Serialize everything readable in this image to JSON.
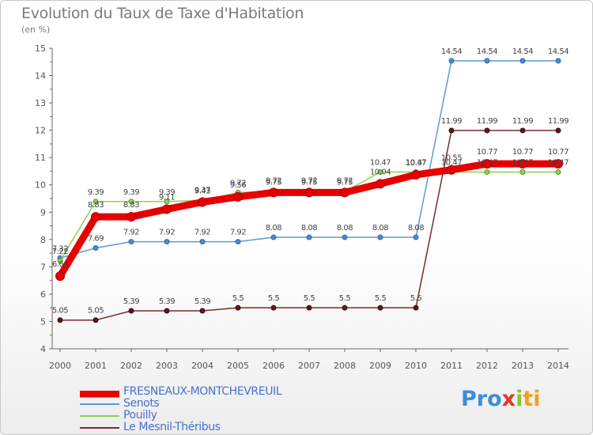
{
  "title": "Evolution du Taux de Taxe d'Habitation",
  "unit": "(en %)",
  "logo": [
    "Pro",
    "x",
    "i",
    "ti"
  ],
  "chart_data": {
    "type": "line",
    "x": [
      "2000",
      "2001",
      "2002",
      "2003",
      "2004",
      "2005",
      "2006",
      "2007",
      "2008",
      "2009",
      "2010",
      "2011",
      "2012",
      "2013",
      "2014"
    ],
    "ylim": [
      4,
      15
    ],
    "yticks": [
      4,
      5,
      6,
      7,
      8,
      9,
      10,
      11,
      12,
      13,
      14,
      15
    ],
    "grid": false,
    "legend_position": "bottom-left",
    "series": [
      {
        "name": "FRESNEAUX-MONTCHEVREUIL",
        "color": "#e60000",
        "values": [
          6.66,
          8.83,
          8.83,
          9.11,
          9.37,
          9.56,
          9.72,
          9.72,
          9.72,
          10.04,
          10.37,
          10.55,
          10.77,
          10.77,
          10.77
        ],
        "labels": [
          "6.66",
          "8.83",
          "8.83",
          "9.11",
          "9.37",
          "9.56",
          "9.72",
          "9.72",
          "9.72",
          "10.04",
          "10.37",
          "10.55",
          "10.77",
          "10.77",
          "10.77"
        ]
      },
      {
        "name": "Senots",
        "color": "#5b9bd5",
        "values": [
          7.32,
          7.69,
          7.92,
          7.92,
          7.92,
          7.92,
          8.08,
          8.08,
          8.08,
          8.08,
          8.08,
          14.54,
          14.54,
          14.54,
          14.54
        ],
        "labels": [
          "7.32",
          "7.69",
          "7.92",
          "7.92",
          "7.92",
          "7.92",
          "8.08",
          "8.08",
          "8.08",
          "8.08",
          "8.08",
          "14.54",
          "14.54",
          "14.54",
          "14.54"
        ]
      },
      {
        "name": "Pouilly",
        "color": "#8fd14f",
        "values": [
          7.22,
          9.39,
          9.39,
          9.39,
          9.43,
          9.72,
          9.75,
          9.75,
          9.75,
          10.47,
          10.47,
          10.47,
          10.47,
          10.47,
          10.47
        ],
        "labels": [
          "7.22",
          "9.39",
          "9.39",
          "9.39",
          "9.43",
          "9.72",
          "9.75",
          "9.75",
          "9.75",
          "10.47",
          "10.47",
          "10.47",
          "10.47",
          "10.47",
          "10.47"
        ]
      },
      {
        "name": "Le Mesnil-Théribus",
        "color": "#7a2a2a",
        "values": [
          5.05,
          5.05,
          5.39,
          5.39,
          5.39,
          5.5,
          5.5,
          5.5,
          5.5,
          5.5,
          5.5,
          11.99,
          11.99,
          11.99,
          11.99
        ],
        "labels": [
          "5.05",
          "5.05",
          "5.39",
          "5.39",
          "5.39",
          "5.5",
          "5.5",
          "5.5",
          "5.5",
          "5.5",
          "5.5",
          "11.99",
          "11.99",
          "11.99",
          "11.99"
        ]
      }
    ]
  }
}
